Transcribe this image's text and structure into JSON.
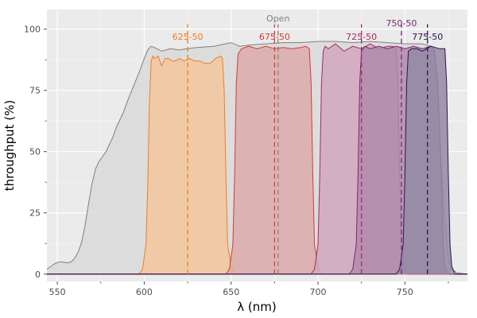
{
  "chart_data": {
    "type": "area",
    "xlabel": "λ (nm)",
    "ylabel": "throughput (%)",
    "xlim": [
      544,
      786
    ],
    "ylim": [
      -3,
      108
    ],
    "x_ticks": [
      550,
      600,
      650,
      700,
      750
    ],
    "x_tick_labels": [
      "550",
      "600",
      "650",
      "700",
      "750"
    ],
    "x_minor_ticks": [
      575,
      625,
      675,
      725,
      775
    ],
    "y_ticks": [
      0,
      25,
      50,
      75,
      100
    ],
    "y_tick_labels": [
      "0",
      "25",
      "50",
      "75",
      "100"
    ],
    "y_minor_ticks": [
      12.5,
      37.5,
      62.5,
      87.5
    ],
    "grid": true,
    "background": "#ebebeb",
    "series": [
      {
        "name": "Open",
        "color": "#808080",
        "fill": "#d9d9d9",
        "center": 677,
        "x": [
          544,
          546,
          548,
          550,
          552,
          554,
          556,
          558,
          560,
          562,
          564,
          566,
          568,
          570,
          572,
          574,
          576,
          578,
          580,
          582,
          584,
          586,
          588,
          590,
          592,
          594,
          596,
          598,
          600,
          602,
          604,
          606,
          610,
          615,
          620,
          625,
          630,
          640,
          650,
          655,
          660,
          670,
          680,
          690,
          700,
          710,
          720,
          730,
          740,
          750,
          760,
          765,
          767,
          769,
          771,
          773,
          775,
          777,
          780,
          786
        ],
        "y": [
          2,
          3,
          4,
          4.8,
          5,
          4.8,
          4.6,
          5,
          6.5,
          9,
          13,
          20,
          29,
          37,
          43,
          46,
          48,
          50,
          53,
          56,
          60,
          63,
          66,
          70,
          73.5,
          77,
          80.5,
          84,
          88,
          91.5,
          93,
          92.5,
          91,
          92,
          91.5,
          92,
          92.5,
          93,
          94.5,
          93,
          93.5,
          94,
          94.5,
          94.5,
          95,
          95,
          94.5,
          95,
          94.5,
          94,
          94,
          93,
          88,
          70,
          45,
          20,
          6,
          2,
          0.5,
          0
        ]
      },
      {
        "name": "625-50",
        "color": "#f07e1e",
        "fill": "#f3c79e",
        "center": 625,
        "x": [
          544,
          597,
          599,
          601,
          602,
          603,
          604,
          605,
          606,
          608,
          610,
          612,
          614,
          616,
          618,
          620,
          623,
          626,
          629,
          632,
          635,
          638,
          641,
          644,
          645,
          646,
          647,
          648,
          650,
          652,
          786
        ],
        "y": [
          0,
          0,
          2,
          12,
          35,
          70,
          87,
          89,
          88,
          89,
          85,
          88,
          88,
          87,
          87,
          88,
          87,
          88,
          87,
          87,
          86,
          86,
          88,
          89,
          88,
          75,
          40,
          12,
          3,
          0,
          0
        ]
      },
      {
        "name": "675-50",
        "color": "#d23c36",
        "fill": "#dcacaa",
        "center": 675,
        "x": [
          544,
          647,
          649,
          651,
          652,
          653,
          654,
          656,
          660,
          665,
          670,
          675,
          680,
          685,
          690,
          693,
          695,
          696,
          697,
          698,
          700,
          702,
          786
        ],
        "y": [
          0,
          0,
          2,
          12,
          40,
          78,
          90,
          92,
          93,
          92,
          93,
          92,
          92.5,
          92,
          92.5,
          93,
          92,
          78,
          40,
          12,
          3,
          0,
          0
        ]
      },
      {
        "name": "725-50",
        "color": "#a52864",
        "fill": "#d0a8bd",
        "center": 725,
        "x": [
          544,
          696,
          698,
          700,
          701,
          702,
          703,
          704,
          706,
          710,
          715,
          720,
          725,
          730,
          735,
          740,
          743,
          745,
          746,
          747,
          748,
          750,
          752,
          786
        ],
        "y": [
          0,
          0,
          2,
          12,
          40,
          78,
          91,
          93,
          92,
          94,
          91,
          93,
          92,
          94,
          92,
          93,
          93,
          92,
          78,
          40,
          12,
          3,
          0,
          0
        ]
      },
      {
        "name": "750-50",
        "color": "#782878",
        "fill": "#b08bac",
        "center": 748,
        "x": [
          544,
          718,
          720,
          722,
          723,
          724,
          725,
          727,
          730,
          735,
          740,
          745,
          750,
          755,
          760,
          765,
          767,
          769,
          771,
          772,
          773,
          775,
          786
        ],
        "y": [
          0,
          0,
          2,
          12,
          40,
          78,
          91,
          93,
          92,
          93,
          92,
          93,
          92,
          93,
          92,
          93,
          92,
          78,
          40,
          12,
          3,
          0,
          0
        ]
      },
      {
        "name": "775-50",
        "color": "#2d1450",
        "fill": "#938aa4",
        "center": 763,
        "x": [
          544,
          745,
          747,
          749,
          750,
          751,
          752,
          754,
          757,
          760,
          765,
          770,
          773,
          774,
          775,
          776,
          777,
          779,
          786
        ],
        "y": [
          0,
          0,
          2,
          12,
          40,
          78,
          91,
          92,
          92,
          91,
          93,
          92,
          92,
          78,
          40,
          12,
          3,
          0,
          0
        ]
      }
    ],
    "annotations": [
      {
        "text": "Open",
        "series": "Open"
      },
      {
        "text": "625-50",
        "series": "625-50"
      },
      {
        "text": "675-50",
        "series": "675-50"
      },
      {
        "text": "725-50",
        "series": "725-50"
      },
      {
        "text": "750-50",
        "series": "750-50"
      },
      {
        "text": "775-50",
        "series": "775-50"
      }
    ]
  }
}
